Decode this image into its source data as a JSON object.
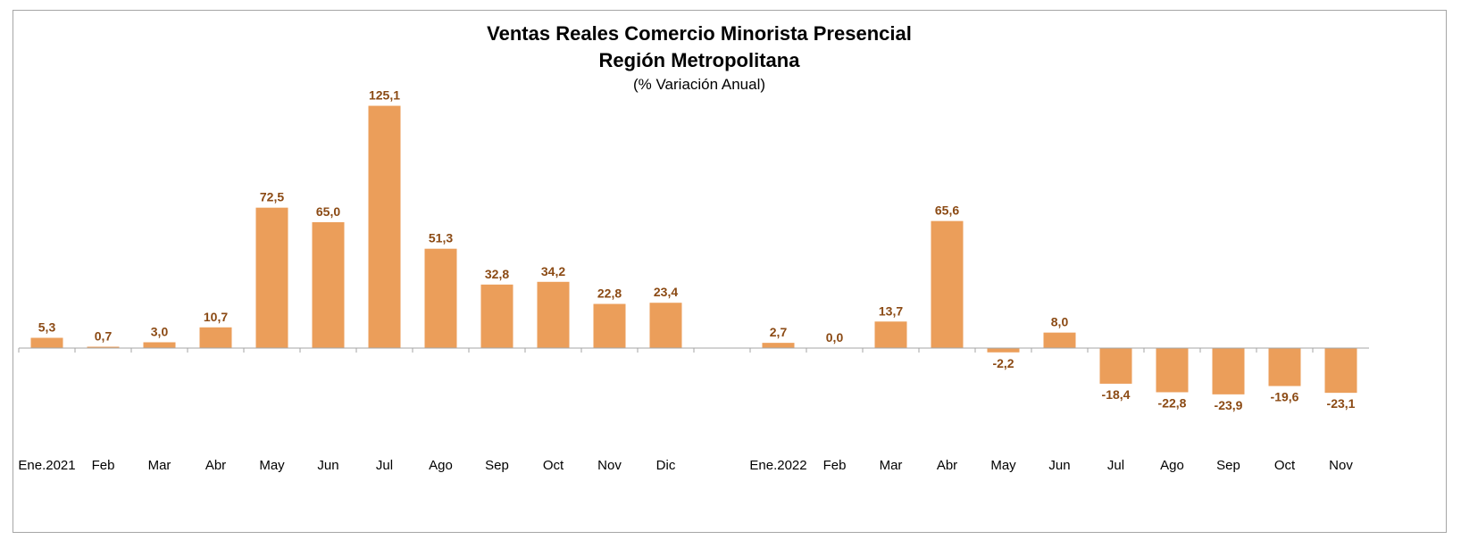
{
  "chart_data": {
    "type": "bar",
    "title": "Ventas Reales Comercio Minorista Presencial",
    "subtitle": "Región Metropolitana",
    "unit_note": "(% Variación Anual)",
    "categories": [
      "Ene.2021",
      "Feb",
      "Mar",
      "Abr",
      "May",
      "Jun",
      "Jul",
      "Ago",
      "Sep",
      "Oct",
      "Nov",
      "Dic",
      "",
      "Ene.2022",
      "Feb",
      "Mar",
      "Abr",
      "May",
      "Jun",
      "Jul",
      "Ago",
      "Sep",
      "Oct",
      "Nov"
    ],
    "values": [
      5.3,
      0.7,
      3.0,
      10.7,
      72.5,
      65.0,
      125.1,
      51.3,
      32.8,
      34.2,
      22.8,
      23.4,
      null,
      2.7,
      0.0,
      13.7,
      65.6,
      -2.2,
      8.0,
      -18.4,
      -22.8,
      -23.9,
      -19.6,
      -23.1
    ],
    "value_labels": [
      "5,3",
      "0,7",
      "3,0",
      "10,7",
      "72,5",
      "65,0",
      "125,1",
      "51,3",
      "32,8",
      "34,2",
      "22,8",
      "23,4",
      "",
      "2,7",
      "0,0",
      "13,7",
      "65,6",
      "-2,2",
      "8,0",
      "-18,4",
      "-22,8",
      "-23,9",
      "-19,6",
      "-23,1"
    ],
    "ylim": [
      -60,
      130
    ],
    "grid": false,
    "legend": "none",
    "bar_color": "#eb9e5a",
    "label_color": "#8b4a14",
    "axis_color": "#a6a6a6"
  }
}
